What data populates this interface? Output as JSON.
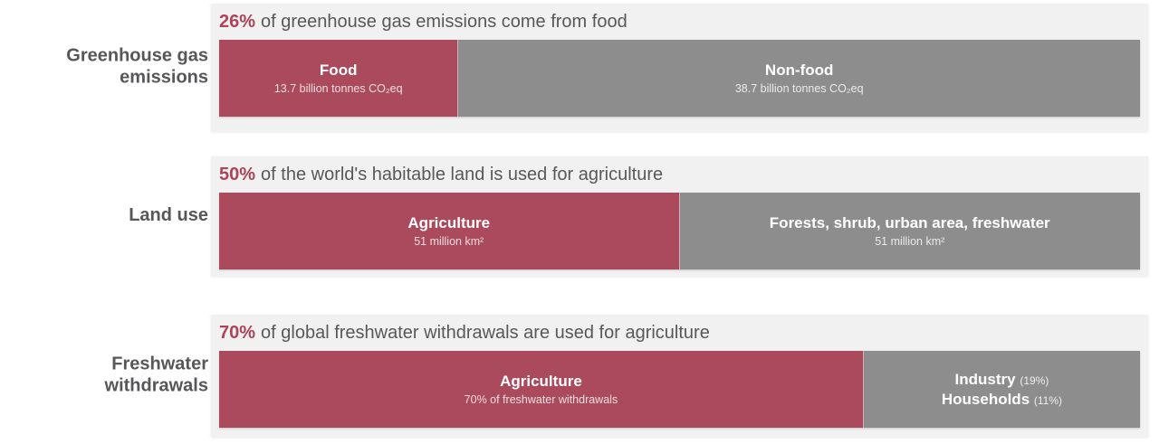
{
  "colors": {
    "accent_red": "#ab4a5c",
    "headline_red": "#ad4258",
    "bar_gray": "#8d8d8d",
    "panel_bg": "#f1f1f1",
    "text_dark": "#58585a"
  },
  "rows": [
    {
      "side_label": "Greenhouse gas emissions",
      "headline": {
        "value": "26%",
        "rest": "of greenhouse gas emissions come from food"
      },
      "segments": {
        "left": {
          "title": "Food",
          "subtitle": "13.7 billion tonnes CO₂eq",
          "percent": 26
        },
        "right": {
          "title": "Non-food",
          "subtitle": "38.7 billion tonnes CO₂eq",
          "percent": 74
        }
      }
    },
    {
      "side_label": "Land use",
      "headline": {
        "value": "50%",
        "rest": "of the world's habitable land is used for agriculture"
      },
      "segments": {
        "left": {
          "title": "Agriculture",
          "subtitle": "51 million km²",
          "percent": 50
        },
        "right": {
          "title": "Forests, shrub, urban area, freshwater",
          "subtitle": "51 million km²",
          "percent": 50
        }
      }
    },
    {
      "side_label": "Freshwater withdrawals",
      "headline": {
        "value": "70%",
        "rest": "of global freshwater withdrawals are used for agriculture"
      },
      "segments": {
        "left": {
          "title": "Agriculture",
          "subtitle": "70% of freshwater withdrawals",
          "percent": 70
        },
        "right": {
          "percent": 30,
          "lines": [
            {
              "title": "Industry",
              "note": "(19%)"
            },
            {
              "title": "Households",
              "note": "(11%)"
            }
          ]
        }
      }
    }
  ],
  "chart_data": {
    "type": "bar",
    "orientation": "horizontal",
    "stacked": true,
    "unit": "percent",
    "xlim": [
      0,
      100
    ],
    "legend": false,
    "categories": [
      "Greenhouse gas emissions",
      "Land use",
      "Freshwater withdrawals"
    ],
    "series": [
      {
        "name": "Food / Agriculture",
        "color": "#ab4a5c",
        "values": [
          26,
          50,
          70
        ]
      },
      {
        "name": "Non-food / Other",
        "color": "#8d8d8d",
        "values": [
          74,
          50,
          30
        ]
      }
    ],
    "headlines": [
      "26% of greenhouse gas emissions come from food",
      "50% of the world's habitable land is used for agriculture",
      "70% of global freshwater withdrawals are used for agriculture"
    ],
    "segment_details": [
      {
        "category": "Greenhouse gas emissions",
        "left": "Food — 13.7 billion tonnes CO₂eq (26%)",
        "right": "Non-food — 38.7 billion tonnes CO₂eq (74%)"
      },
      {
        "category": "Land use",
        "left": "Agriculture — 51 million km² (50%)",
        "right": "Forests, shrub, urban area, freshwater — 51 million km² (50%)"
      },
      {
        "category": "Freshwater withdrawals",
        "left": "Agriculture — 70% of freshwater withdrawals",
        "right": "Industry (19%), Households (11%)"
      }
    ]
  }
}
